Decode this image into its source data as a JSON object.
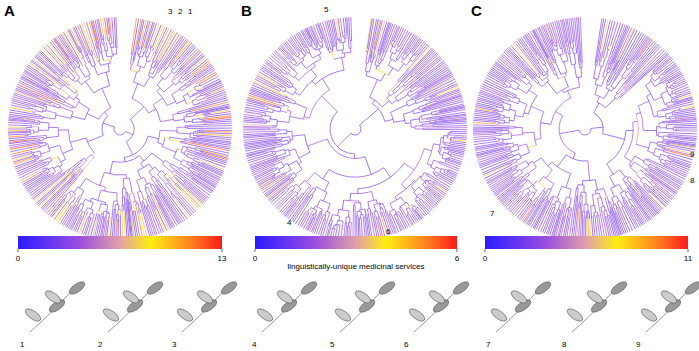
{
  "chart_data": [
    {
      "type": "phylogeny",
      "title": "A",
      "colorbar": {
        "range": [
          0,
          13
        ],
        "ticks": [
          0,
          13
        ]
      },
      "annotations": [
        "1",
        "2",
        "3"
      ]
    },
    {
      "type": "phylogeny",
      "title": "B",
      "colorbar": {
        "range": [
          0,
          6
        ],
        "ticks": [
          0,
          6
        ],
        "label": "linguistically-unique medicinal services"
      },
      "annotations": [
        "4",
        "5",
        "6"
      ]
    },
    {
      "type": "phylogeny",
      "title": "C",
      "colorbar": {
        "range": [
          0,
          11
        ],
        "ticks": [
          0,
          11
        ]
      },
      "annotations": [
        "7",
        "8",
        "9"
      ]
    }
  ]
}
